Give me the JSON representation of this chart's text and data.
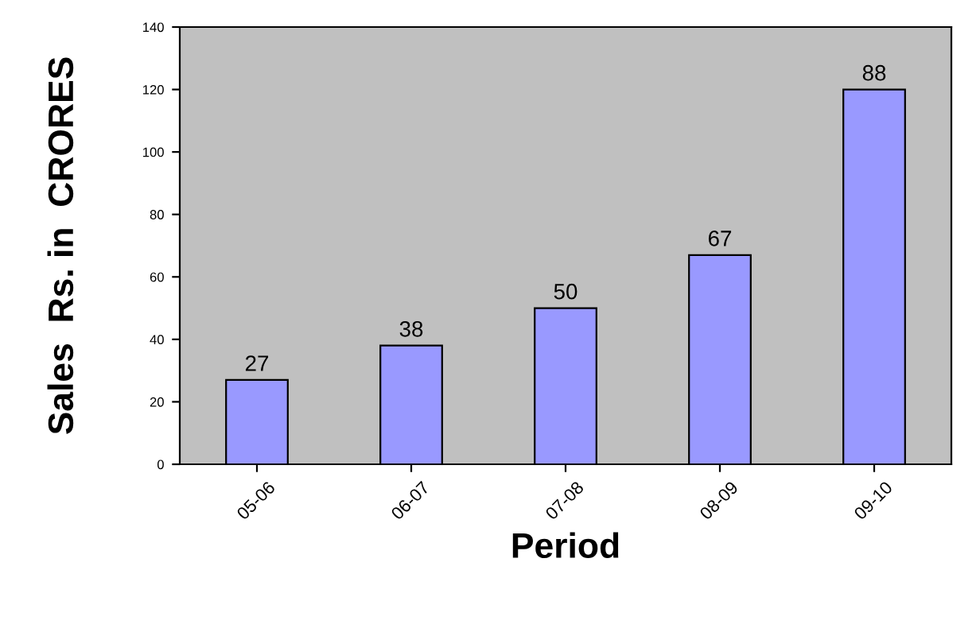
{
  "chart_data": {
    "type": "bar",
    "xlabel": "Period",
    "ylabel": "Sales  Rs. in  CRORES",
    "categories": [
      "05-06",
      "06-07",
      "07-08",
      "08-09",
      "09-10"
    ],
    "values": [
      27,
      38,
      50,
      67,
      120
    ],
    "value_labels": [
      "27",
      "38",
      "50",
      "67",
      null
    ],
    "annotations": [
      {
        "text": "88",
        "x": "09-10",
        "y": 120
      }
    ],
    "color": "#9999ff",
    "ylim": [
      0,
      140
    ],
    "yticks": [
      0,
      20,
      40,
      60,
      80,
      100,
      120,
      140
    ],
    "grid": false,
    "legend": false
  }
}
